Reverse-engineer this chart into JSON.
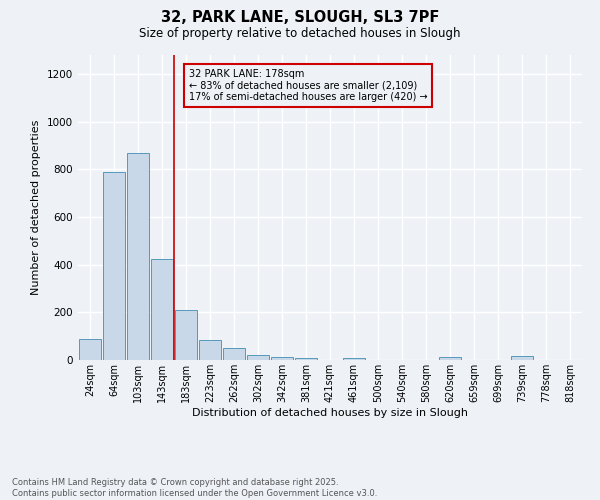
{
  "title1": "32, PARK LANE, SLOUGH, SL3 7PF",
  "title2": "Size of property relative to detached houses in Slough",
  "xlabel": "Distribution of detached houses by size in Slough",
  "ylabel": "Number of detached properties",
  "categories": [
    "24sqm",
    "64sqm",
    "103sqm",
    "143sqm",
    "183sqm",
    "223sqm",
    "262sqm",
    "302sqm",
    "342sqm",
    "381sqm",
    "421sqm",
    "461sqm",
    "500sqm",
    "540sqm",
    "580sqm",
    "620sqm",
    "659sqm",
    "699sqm",
    "739sqm",
    "778sqm",
    "818sqm"
  ],
  "values": [
    90,
    790,
    870,
    425,
    210,
    85,
    52,
    20,
    13,
    10,
    0,
    10,
    0,
    0,
    0,
    12,
    0,
    0,
    15,
    0,
    0
  ],
  "bar_color": "#c8d8e8",
  "bar_edge_color": "#5599bb",
  "vline_color": "#cc0000",
  "vline_bin": 4,
  "annotation_title": "32 PARK LANE: 178sqm",
  "annotation_line1": "← 83% of detached houses are smaller (2,109)",
  "annotation_line2": "17% of semi-detached houses are larger (420) →",
  "annotation_box_color": "#cc0000",
  "ylim": [
    0,
    1280
  ],
  "yticks": [
    0,
    200,
    400,
    600,
    800,
    1000,
    1200
  ],
  "background_color": "#eef2f7",
  "footer_line1": "Contains HM Land Registry data © Crown copyright and database right 2025.",
  "footer_line2": "Contains public sector information licensed under the Open Government Licence v3.0.",
  "grid_color": "#ffffff"
}
